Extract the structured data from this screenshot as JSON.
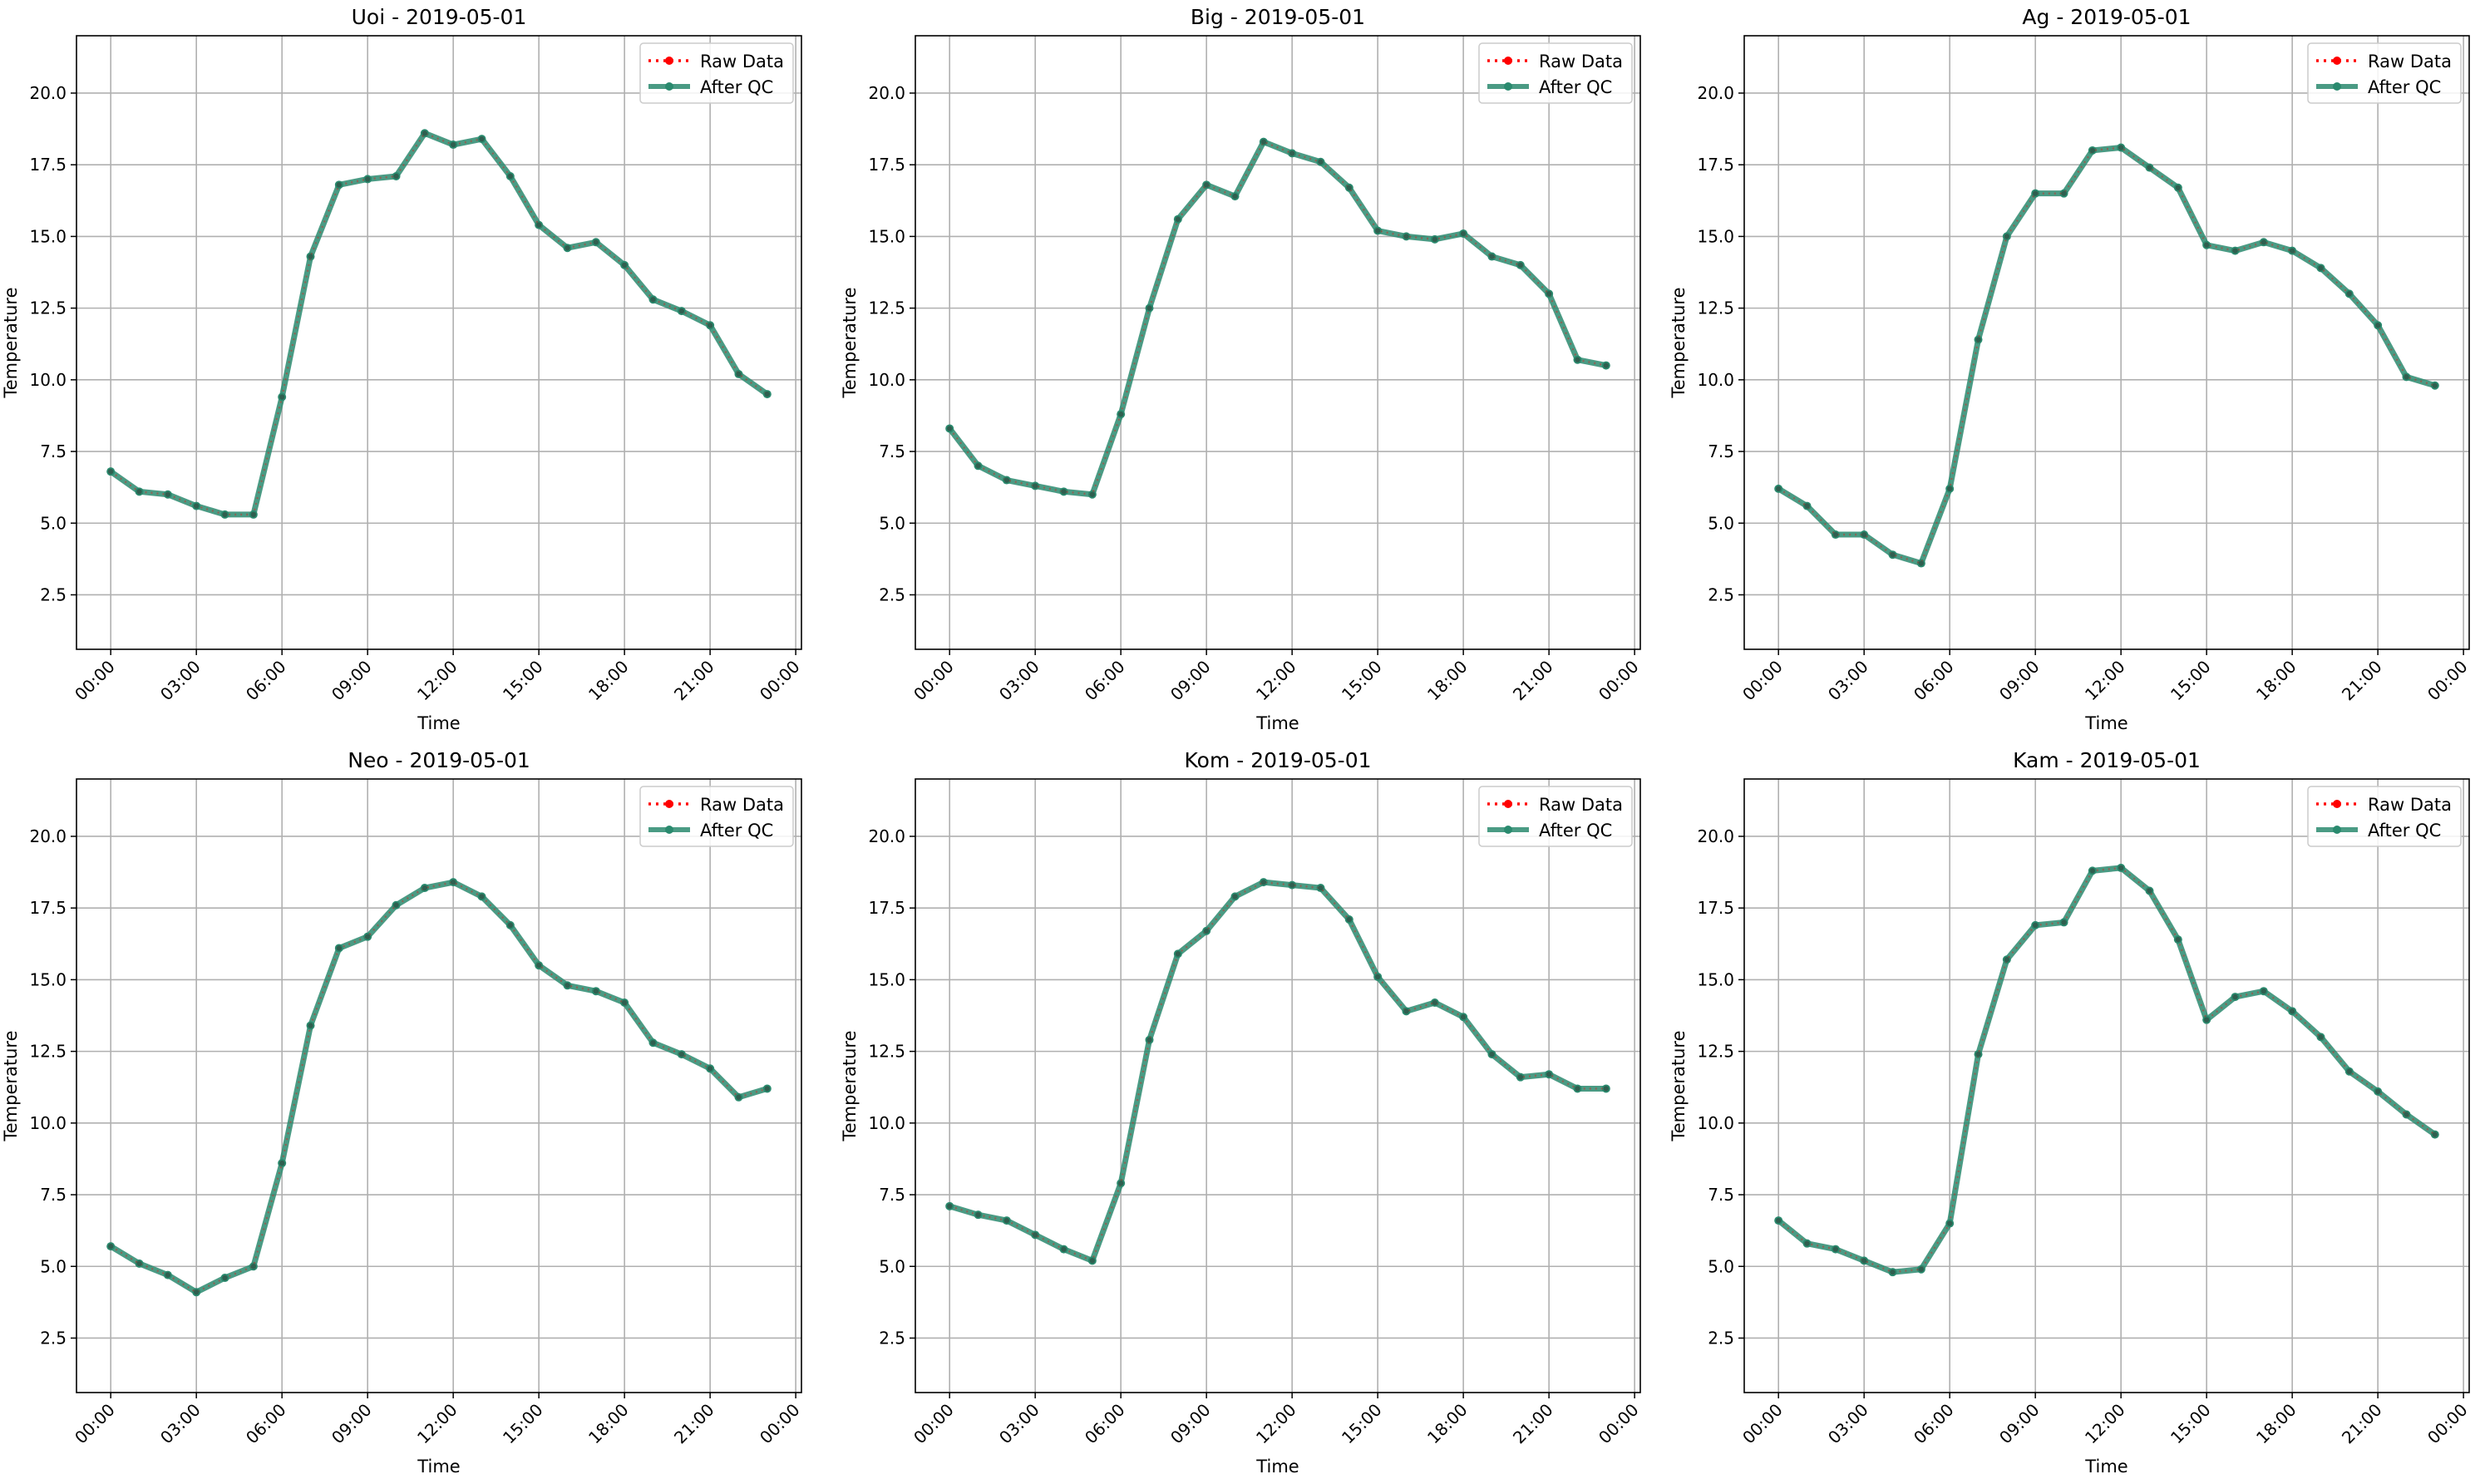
{
  "chart_data": [
    {
      "type": "line",
      "title": "Uoi - 2019-05-01",
      "xlabel": "Time",
      "ylabel": "Temperature",
      "x_tick_labels": [
        "00:00",
        "03:00",
        "06:00",
        "09:00",
        "12:00",
        "15:00",
        "18:00",
        "21:00",
        "00:00"
      ],
      "y_ticks": [
        2.5,
        5.0,
        7.5,
        10.0,
        12.5,
        15.0,
        17.5,
        20.0
      ],
      "ylim": [
        0.6,
        22.0
      ],
      "xlim_hours": [
        -1.2,
        24.2
      ],
      "grid": true,
      "legend_position": "top-right",
      "x_hours": [
        0,
        1,
        2,
        3,
        4,
        5,
        6,
        7,
        8,
        9,
        10,
        11,
        12,
        13,
        14,
        15,
        16,
        17,
        18,
        19,
        20,
        21,
        22,
        23
      ],
      "series": [
        {
          "name": "Raw Data",
          "color": "#ff0000",
          "values": [
            6.8,
            6.1,
            6.0,
            5.6,
            5.3,
            5.3,
            9.4,
            14.3,
            16.8,
            17.0,
            17.1,
            18.6,
            18.2,
            18.4,
            17.1,
            15.4,
            14.6,
            14.8,
            14.0,
            12.8,
            12.4,
            11.9,
            10.2,
            9.5
          ]
        },
        {
          "name": "After QC",
          "color": "#2a8a6e",
          "values": [
            6.8,
            6.1,
            6.0,
            5.6,
            5.3,
            5.3,
            9.4,
            14.3,
            16.8,
            17.0,
            17.1,
            18.6,
            18.2,
            18.4,
            17.1,
            15.4,
            14.6,
            14.8,
            14.0,
            12.8,
            12.4,
            11.9,
            10.2,
            9.5
          ]
        }
      ]
    },
    {
      "type": "line",
      "title": "Big - 2019-05-01",
      "xlabel": "Time",
      "ylabel": "Temperature",
      "x_tick_labels": [
        "00:00",
        "03:00",
        "06:00",
        "09:00",
        "12:00",
        "15:00",
        "18:00",
        "21:00",
        "00:00"
      ],
      "y_ticks": [
        2.5,
        5.0,
        7.5,
        10.0,
        12.5,
        15.0,
        17.5,
        20.0
      ],
      "ylim": [
        0.6,
        22.0
      ],
      "xlim_hours": [
        -1.2,
        24.2
      ],
      "grid": true,
      "legend_position": "top-right",
      "x_hours": [
        0,
        1,
        2,
        3,
        4,
        5,
        6,
        7,
        8,
        9,
        10,
        11,
        12,
        13,
        14,
        15,
        16,
        17,
        18,
        19,
        20,
        21,
        22,
        23
      ],
      "series": [
        {
          "name": "Raw Data",
          "color": "#ff0000",
          "values": [
            8.3,
            7.0,
            6.5,
            6.3,
            6.1,
            6.0,
            8.8,
            12.5,
            15.6,
            16.8,
            16.4,
            18.3,
            17.9,
            17.6,
            16.7,
            15.2,
            15.0,
            14.9,
            15.1,
            14.3,
            14.0,
            13.0,
            10.7,
            10.5
          ]
        },
        {
          "name": "After QC",
          "color": "#2a8a6e",
          "values": [
            8.3,
            7.0,
            6.5,
            6.3,
            6.1,
            6.0,
            8.8,
            12.5,
            15.6,
            16.8,
            16.4,
            18.3,
            17.9,
            17.6,
            16.7,
            15.2,
            15.0,
            14.9,
            15.1,
            14.3,
            14.0,
            13.0,
            10.7,
            10.5
          ]
        }
      ]
    },
    {
      "type": "line",
      "title": "Ag - 2019-05-01",
      "xlabel": "Time",
      "ylabel": "Temperature",
      "x_tick_labels": [
        "00:00",
        "03:00",
        "06:00",
        "09:00",
        "12:00",
        "15:00",
        "18:00",
        "21:00",
        "00:00"
      ],
      "y_ticks": [
        2.5,
        5.0,
        7.5,
        10.0,
        12.5,
        15.0,
        17.5,
        20.0
      ],
      "ylim": [
        0.6,
        22.0
      ],
      "xlim_hours": [
        -1.2,
        24.2
      ],
      "grid": true,
      "legend_position": "top-right",
      "x_hours": [
        0,
        1,
        2,
        3,
        4,
        5,
        6,
        7,
        8,
        9,
        10,
        11,
        12,
        13,
        14,
        15,
        16,
        17,
        18,
        19,
        20,
        21,
        22,
        23
      ],
      "series": [
        {
          "name": "Raw Data",
          "color": "#ff0000",
          "values": [
            6.2,
            5.6,
            4.6,
            4.6,
            3.9,
            3.6,
            6.2,
            11.4,
            15.0,
            16.5,
            16.5,
            18.0,
            18.1,
            17.4,
            16.7,
            14.7,
            14.5,
            14.8,
            14.5,
            13.9,
            13.0,
            11.9,
            10.1,
            9.8
          ]
        },
        {
          "name": "After QC",
          "color": "#2a8a6e",
          "values": [
            6.2,
            5.6,
            4.6,
            4.6,
            3.9,
            3.6,
            6.2,
            11.4,
            15.0,
            16.5,
            16.5,
            18.0,
            18.1,
            17.4,
            16.7,
            14.7,
            14.5,
            14.8,
            14.5,
            13.9,
            13.0,
            11.9,
            10.1,
            9.8
          ]
        }
      ]
    },
    {
      "type": "line",
      "title": "Neo - 2019-05-01",
      "xlabel": "Time",
      "ylabel": "Temperature",
      "x_tick_labels": [
        "00:00",
        "03:00",
        "06:00",
        "09:00",
        "12:00",
        "15:00",
        "18:00",
        "21:00",
        "00:00"
      ],
      "y_ticks": [
        2.5,
        5.0,
        7.5,
        10.0,
        12.5,
        15.0,
        17.5,
        20.0
      ],
      "ylim": [
        0.6,
        22.0
      ],
      "xlim_hours": [
        -1.2,
        24.2
      ],
      "grid": true,
      "legend_position": "top-right",
      "x_hours": [
        0,
        1,
        2,
        3,
        4,
        5,
        6,
        7,
        8,
        9,
        10,
        11,
        12,
        13,
        14,
        15,
        16,
        17,
        18,
        19,
        20,
        21,
        22,
        23
      ],
      "series": [
        {
          "name": "Raw Data",
          "color": "#ff0000",
          "values": [
            5.7,
            5.1,
            4.7,
            4.1,
            4.6,
            5.0,
            8.6,
            13.4,
            16.1,
            16.5,
            17.6,
            18.2,
            18.4,
            17.9,
            16.9,
            15.5,
            14.8,
            14.6,
            14.2,
            12.8,
            12.4,
            11.9,
            10.9,
            11.2
          ]
        },
        {
          "name": "After QC",
          "color": "#2a8a6e",
          "values": [
            5.7,
            5.1,
            4.7,
            4.1,
            4.6,
            5.0,
            8.6,
            13.4,
            16.1,
            16.5,
            17.6,
            18.2,
            18.4,
            17.9,
            16.9,
            15.5,
            14.8,
            14.6,
            14.2,
            12.8,
            12.4,
            11.9,
            10.9,
            11.2
          ]
        }
      ]
    },
    {
      "type": "line",
      "title": "Kom - 2019-05-01",
      "xlabel": "Time",
      "ylabel": "Temperature",
      "x_tick_labels": [
        "00:00",
        "03:00",
        "06:00",
        "09:00",
        "12:00",
        "15:00",
        "18:00",
        "21:00",
        "00:00"
      ],
      "y_ticks": [
        2.5,
        5.0,
        7.5,
        10.0,
        12.5,
        15.0,
        17.5,
        20.0
      ],
      "ylim": [
        0.6,
        22.0
      ],
      "xlim_hours": [
        -1.2,
        24.2
      ],
      "grid": true,
      "legend_position": "top-right",
      "x_hours": [
        0,
        1,
        2,
        3,
        4,
        5,
        6,
        7,
        8,
        9,
        10,
        11,
        12,
        13,
        14,
        15,
        16,
        17,
        18,
        19,
        20,
        21,
        22,
        23
      ],
      "series": [
        {
          "name": "Raw Data",
          "color": "#ff0000",
          "values": [
            7.1,
            6.8,
            6.6,
            6.1,
            5.6,
            5.2,
            7.9,
            12.9,
            15.9,
            16.7,
            17.9,
            18.4,
            18.3,
            18.2,
            17.1,
            15.1,
            13.9,
            14.2,
            13.7,
            12.4,
            11.6,
            11.7,
            11.2,
            11.2
          ]
        },
        {
          "name": "After QC",
          "color": "#2a8a6e",
          "values": [
            7.1,
            6.8,
            6.6,
            6.1,
            5.6,
            5.2,
            7.9,
            12.9,
            15.9,
            16.7,
            17.9,
            18.4,
            18.3,
            18.2,
            17.1,
            15.1,
            13.9,
            14.2,
            13.7,
            12.4,
            11.6,
            11.7,
            11.2,
            11.2
          ]
        }
      ]
    },
    {
      "type": "line",
      "title": "Kam - 2019-05-01",
      "xlabel": "Time",
      "ylabel": "Temperature",
      "x_tick_labels": [
        "00:00",
        "03:00",
        "06:00",
        "09:00",
        "12:00",
        "15:00",
        "18:00",
        "21:00",
        "00:00"
      ],
      "y_ticks": [
        2.5,
        5.0,
        7.5,
        10.0,
        12.5,
        15.0,
        17.5,
        20.0
      ],
      "ylim": [
        0.6,
        22.0
      ],
      "xlim_hours": [
        -1.2,
        24.2
      ],
      "grid": true,
      "legend_position": "top-right",
      "x_hours": [
        0,
        1,
        2,
        3,
        4,
        5,
        6,
        7,
        8,
        9,
        10,
        11,
        12,
        13,
        14,
        15,
        16,
        17,
        18,
        19,
        20,
        21,
        22,
        23
      ],
      "series": [
        {
          "name": "Raw Data",
          "color": "#ff0000",
          "values": [
            6.6,
            5.8,
            5.6,
            5.2,
            4.8,
            4.9,
            6.5,
            12.4,
            15.7,
            16.9,
            17.0,
            18.8,
            18.9,
            18.1,
            16.4,
            13.6,
            14.4,
            14.6,
            13.9,
            13.0,
            11.8,
            11.1,
            10.3,
            9.6
          ]
        },
        {
          "name": "After QC",
          "color": "#2a8a6e",
          "values": [
            6.6,
            5.8,
            5.6,
            5.2,
            4.8,
            4.9,
            6.5,
            12.4,
            15.7,
            16.9,
            17.0,
            18.8,
            18.9,
            18.1,
            16.4,
            13.6,
            14.4,
            14.6,
            13.9,
            13.0,
            11.8,
            11.1,
            10.3,
            9.6
          ]
        }
      ]
    }
  ]
}
